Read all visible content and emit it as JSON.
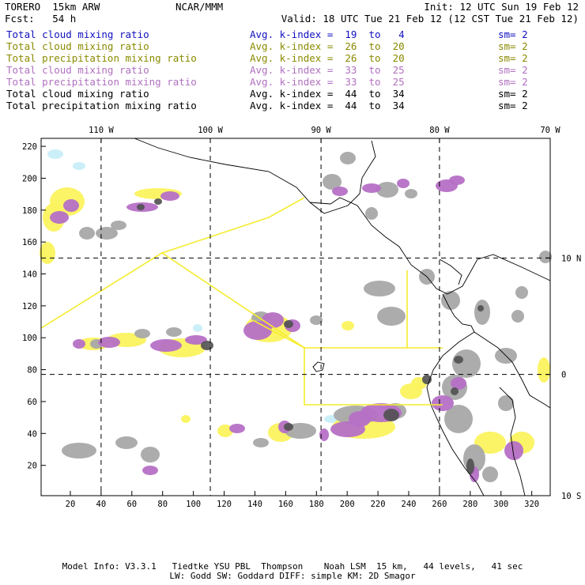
{
  "header": {
    "model": "TORERO  15km ARW",
    "center": "NCAR/MMM",
    "init": "Init: 12 UTC Sun 19 Feb 12",
    "fcst": "Fcst:   54 h",
    "valid": "Valid: 18 UTC Tue 21 Feb 12 (12 CST Tue 21 Feb 12)"
  },
  "legend": [
    {
      "field": "Total cloud mixing ratio",
      "kindex": "Avg. k-index =  19  to   4",
      "sm": "sm= 2",
      "color": "#1010c0"
    },
    {
      "field": "Total cloud mixing ratio",
      "kindex": "Avg. k-index =  26  to  20",
      "sm": "sm= 2",
      "color": "#8a8a00"
    },
    {
      "field": "Total precipitation mixing ratio",
      "kindex": "Avg. k-index =  26  to  20",
      "sm": "sm= 2",
      "color": "#8a8a00"
    },
    {
      "field": "Total cloud mixing ratio",
      "kindex": "Avg. k-index =  33  to  25",
      "sm": "sm= 2",
      "color": "#b070c0"
    },
    {
      "field": "Total precipitation mixing ratio",
      "kindex": "Avg. k-index =  33  to  25",
      "sm": "sm= 2",
      "color": "#b070c0"
    },
    {
      "field": "Total cloud mixing ratio",
      "kindex": "Avg. k-index =  44  to  34",
      "sm": "sm= 2",
      "color": "#000000"
    },
    {
      "field": "Total precipitation mixing ratio",
      "kindex": "Avg. k-index =  44  to  34",
      "sm": "sm= 2",
      "color": "#000000"
    }
  ],
  "map": {
    "x_range": [
      1,
      332
    ],
    "y_range": [
      1,
      225
    ],
    "x_ticks": [
      20,
      40,
      60,
      80,
      100,
      120,
      140,
      160,
      180,
      200,
      220,
      240,
      260,
      280,
      300,
      320
    ],
    "y_ticks": [
      20,
      40,
      60,
      80,
      100,
      120,
      140,
      160,
      180,
      200,
      220
    ],
    "lon_labels": [
      {
        "text": "110 W",
        "x": 40
      },
      {
        "text": "100 W",
        "x": 111
      },
      {
        "text": "90 W",
        "x": 183
      },
      {
        "text": "80 W",
        "x": 260
      },
      {
        "text": "70 W",
        "x": 332
      }
    ],
    "lat_labels": [
      {
        "text": "10 N",
        "y": 150
      },
      {
        "text": "0",
        "y": 77
      },
      {
        "text": "10 S",
        "y": 1
      }
    ],
    "meridians_x": [
      40,
      111,
      183,
      260
    ],
    "parallels_y": [
      150,
      77
    ],
    "colors": {
      "coast": "#000000",
      "yellow_line": "#f4ec2c",
      "gray": "#a8a8a8",
      "dark": "#505050",
      "purple": "#b670c6",
      "yellow": "#fbf35e",
      "cyan": "#c8eef8"
    }
  },
  "footer": {
    "line1": "Model Info: V3.3.1   Tiedtke YSU PBL  Thompson    Noah LSM  15 km,   44 levels,   41 sec",
    "line2": "LW: Godd SW: Goddard DIFF: simple KM: 2D Smagor"
  }
}
